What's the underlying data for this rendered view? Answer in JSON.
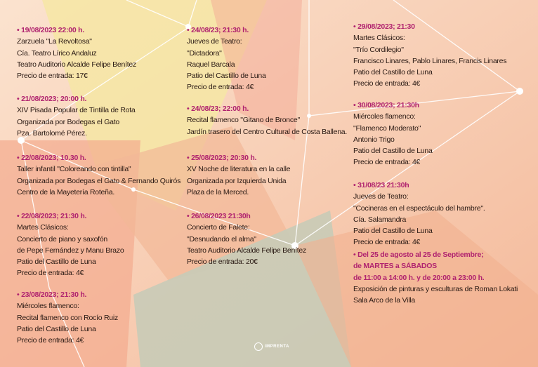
{
  "columns": [
    {
      "events": [
        {
          "heading": [
            "• 19/08/2023 22:00 h."
          ],
          "lines": [
            "Zarzuela \"La Revoltosa\"",
            "Cía. Teatro Lírico Andaluz",
            "Teatro Auditorio Alcalde Felipe Benítez",
            "Precio de entrada: 17€"
          ]
        },
        {
          "heading": [
            "• 21/08/2023; 20:00 h."
          ],
          "lines": [
            "XIV Pisada Popular de Tintilla de Rota",
            "Organizada por Bodegas el Gato",
            "Pza. Bartolomé Pérez."
          ]
        },
        {
          "heading": [
            "• 22/08/2023; 10.30 h."
          ],
          "lines": [
            "Taller infantil \"Coloreando con tintilla\"",
            "Organizada por Bodegas el Gato & Fernando Quirós",
            "Centro de la Mayetería Roteña."
          ]
        },
        {
          "heading": [
            "• 22/08/2023;  21:30 h."
          ],
          "lines": [
            "Martes Clásicos:",
            "Concierto de piano y saxofón",
            "de Pepe Fernández y Manu Brazo",
            "Patio del Castillo de Luna",
            "Precio de entrada: 4€"
          ]
        },
        {
          "heading": [
            "• 23/08/2023; 21:30 h."
          ],
          "lines": [
            "Miércoles flamenco:",
            "Recital flamenco con Rocío Ruiz",
            "Patio del Castillo de Luna",
            "Precio de entrada: 4€"
          ]
        }
      ]
    },
    {
      "events": [
        {
          "heading": [
            "• 24/08/23; 21:30 h."
          ],
          "lines": [
            "Jueves de Teatro:",
            "\"Dictadora\"",
            "Raquel Barcala",
            "Patio del Castillo de Luna",
            "Precio de entrada: 4€"
          ]
        },
        {
          "heading": [
            "• 24/08/23; 22:00 h."
          ],
          "lines": [
            "Recital flamenco \"Gitano de Bronce\"",
            "Jardín trasero del Centro Cultural de Costa Ballena."
          ]
        },
        {
          "heading": [
            "• 25/08/2023; 20:30 h."
          ],
          "lines": [
            "XV Noche de literatura en la calle",
            "Organizada por Izquierda Unida",
            "Plaza de la Merced."
          ]
        },
        {
          "heading": [
            "• 26/08/2023  21:30h"
          ],
          "lines": [
            "Concierto de  Falete:",
            "\"Desnudando el alma\"",
            "Teatro Auditorio Alcalde Felipe Benítez",
            "Precio de entrada: 20€"
          ]
        }
      ]
    },
    {
      "events": [
        {
          "heading": [
            "• 29/08/2023;  21:30"
          ],
          "lines": [
            "Martes Clásicos:",
            "\"Trío Cordilegio\"",
            "Francisco Linares, Pablo Linares, Francis Linares",
            "Patio del Castillo de Luna",
            "Precio de entrada: 4€"
          ]
        },
        {
          "heading": [
            "• 30/08/2023; 21:30h"
          ],
          "lines": [
            "Miércoles flamenco:",
            "\"Flamenco Moderato\"",
            "Antonio Trigo",
            "Patio del  Castillo de Luna",
            "Precio de entrada: 4€"
          ]
        },
        {
          "heading": [
            "• 31/08/23 21:30h"
          ],
          "lines": [
            "Jueves de Teatro:",
            "\"Cocineras en el espectáculo del hambre\".",
            "Cía.  Salamandra",
            "Patio del Castillo de Luna",
            "Precio de entrada: 4€"
          ]
        },
        {
          "heading": [
            "• Del 25 de agosto al 25 de Septiembre;",
            "de MARTES a SÁBADOS",
            "de 11:00 a 14:00 h. y de 20:00 a 23:00 h."
          ],
          "lines": [
            "Exposición de pinturas y esculturas de Roman Lokati",
            "Sala Arco de la Villa"
          ]
        }
      ]
    }
  ],
  "logo": "IMPRENTA"
}
